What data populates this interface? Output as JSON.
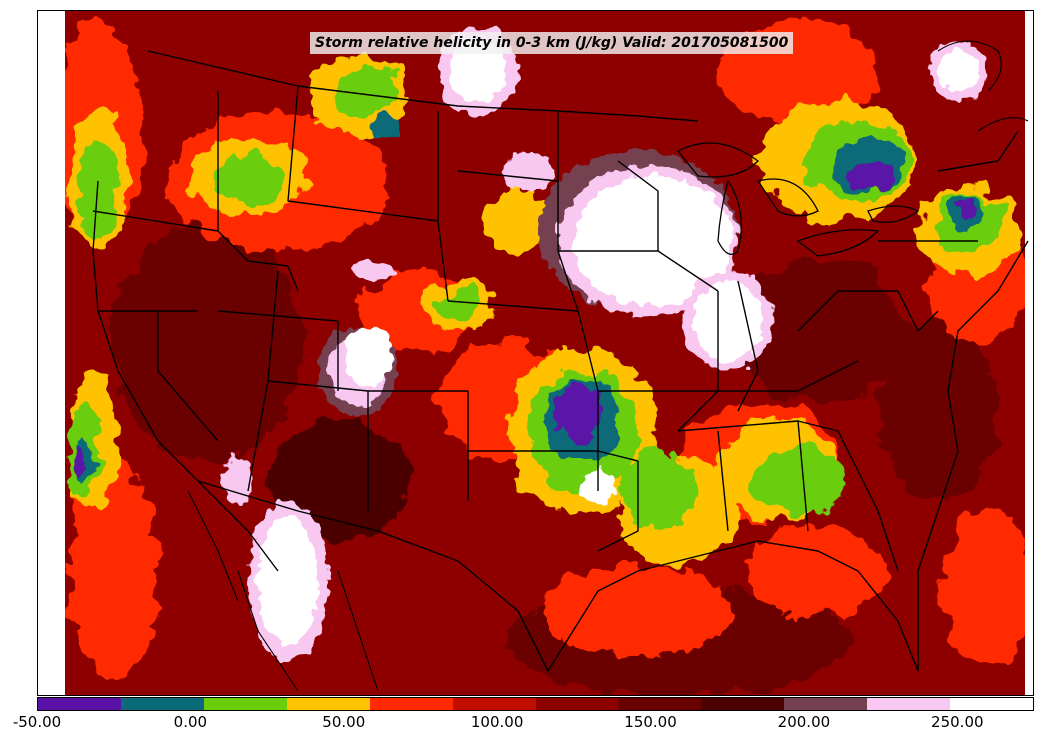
{
  "title": "Storm relative helicity in 0-3 km (J/kg) Valid: 201705081500",
  "colorbar": {
    "min": -50,
    "max": 275,
    "step": 25,
    "tick_labels": [
      "-50.00",
      "0.00",
      "50.00",
      "100.00",
      "150.00",
      "200.00",
      "250.00"
    ],
    "colors": [
      "#5a12a6",
      "#0a6a78",
      "#6acd0c",
      "#ffc200",
      "#ff2a00",
      "#c20e00",
      "#8e0000",
      "#6a0000",
      "#4c0000",
      "#744050",
      "#f8c8f0",
      "#ffffff"
    ]
  },
  "map": {
    "projection": "Lambert Conformal",
    "region": "Continental United States",
    "background": "#8e0000",
    "outside_domain_color": "#ffffff"
  }
}
